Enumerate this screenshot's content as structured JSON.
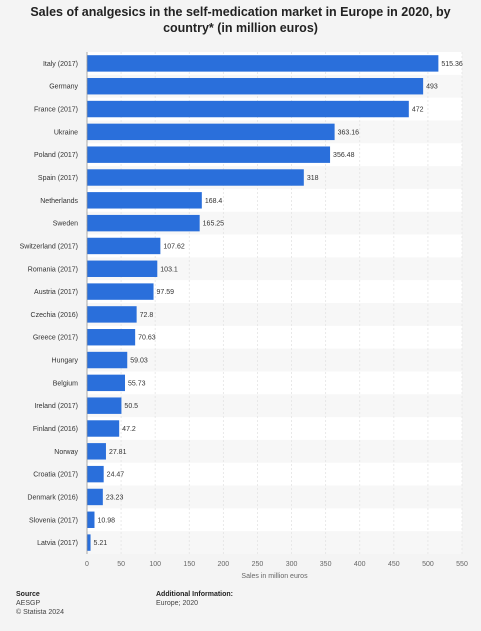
{
  "chart_data": {
    "type": "bar",
    "orientation": "horizontal",
    "title": "Sales of analgesics in the self-medication market in Europe in 2020, by country* (in million euros)",
    "xlabel": "Sales in million euros",
    "ylabel": "",
    "xlim": [
      0,
      550
    ],
    "xticks": [
      "0",
      "50",
      "100",
      "150",
      "200",
      "250",
      "300",
      "350",
      "400",
      "450",
      "500",
      "550"
    ],
    "grid": true,
    "bar_color": "#2a6fdb",
    "categories": [
      "Italy (2017)",
      "Germany",
      "France (2017)",
      "Ukraine",
      "Poland (2017)",
      "Spain (2017)",
      "Netherlands",
      "Sweden",
      "Switzerland (2017)",
      "Romania (2017)",
      "Austria (2017)",
      "Czechia (2016)",
      "Greece (2017)",
      "Hungary",
      "Belgium",
      "Ireland (2017)",
      "Finland (2016)",
      "Norway",
      "Croatia (2017)",
      "Denmark (2016)",
      "Slovenia (2017)",
      "Latvia (2017)"
    ],
    "values": [
      515.36,
      493,
      472,
      363.16,
      356.48,
      318,
      168.4,
      165.25,
      107.62,
      103.1,
      97.59,
      72.8,
      70.63,
      59.03,
      55.73,
      50.5,
      47.2,
      27.81,
      24.47,
      23.23,
      10.98,
      5.21
    ],
    "value_labels": [
      "515.36",
      "493",
      "472",
      "363.16",
      "356.48",
      "318",
      "168.4",
      "165.25",
      "107.62",
      "103.1",
      "97.59",
      "72.8",
      "70.63",
      "59.03",
      "55.73",
      "50.5",
      "47.2",
      "27.81",
      "24.47",
      "23.23",
      "10.98",
      "5.21"
    ]
  },
  "footer": {
    "source_heading": "Source",
    "source_name": "AESGP",
    "copyright": "© Statista 2024",
    "info_heading": "Additional Information:",
    "info_text": "Europe; 2020"
  }
}
